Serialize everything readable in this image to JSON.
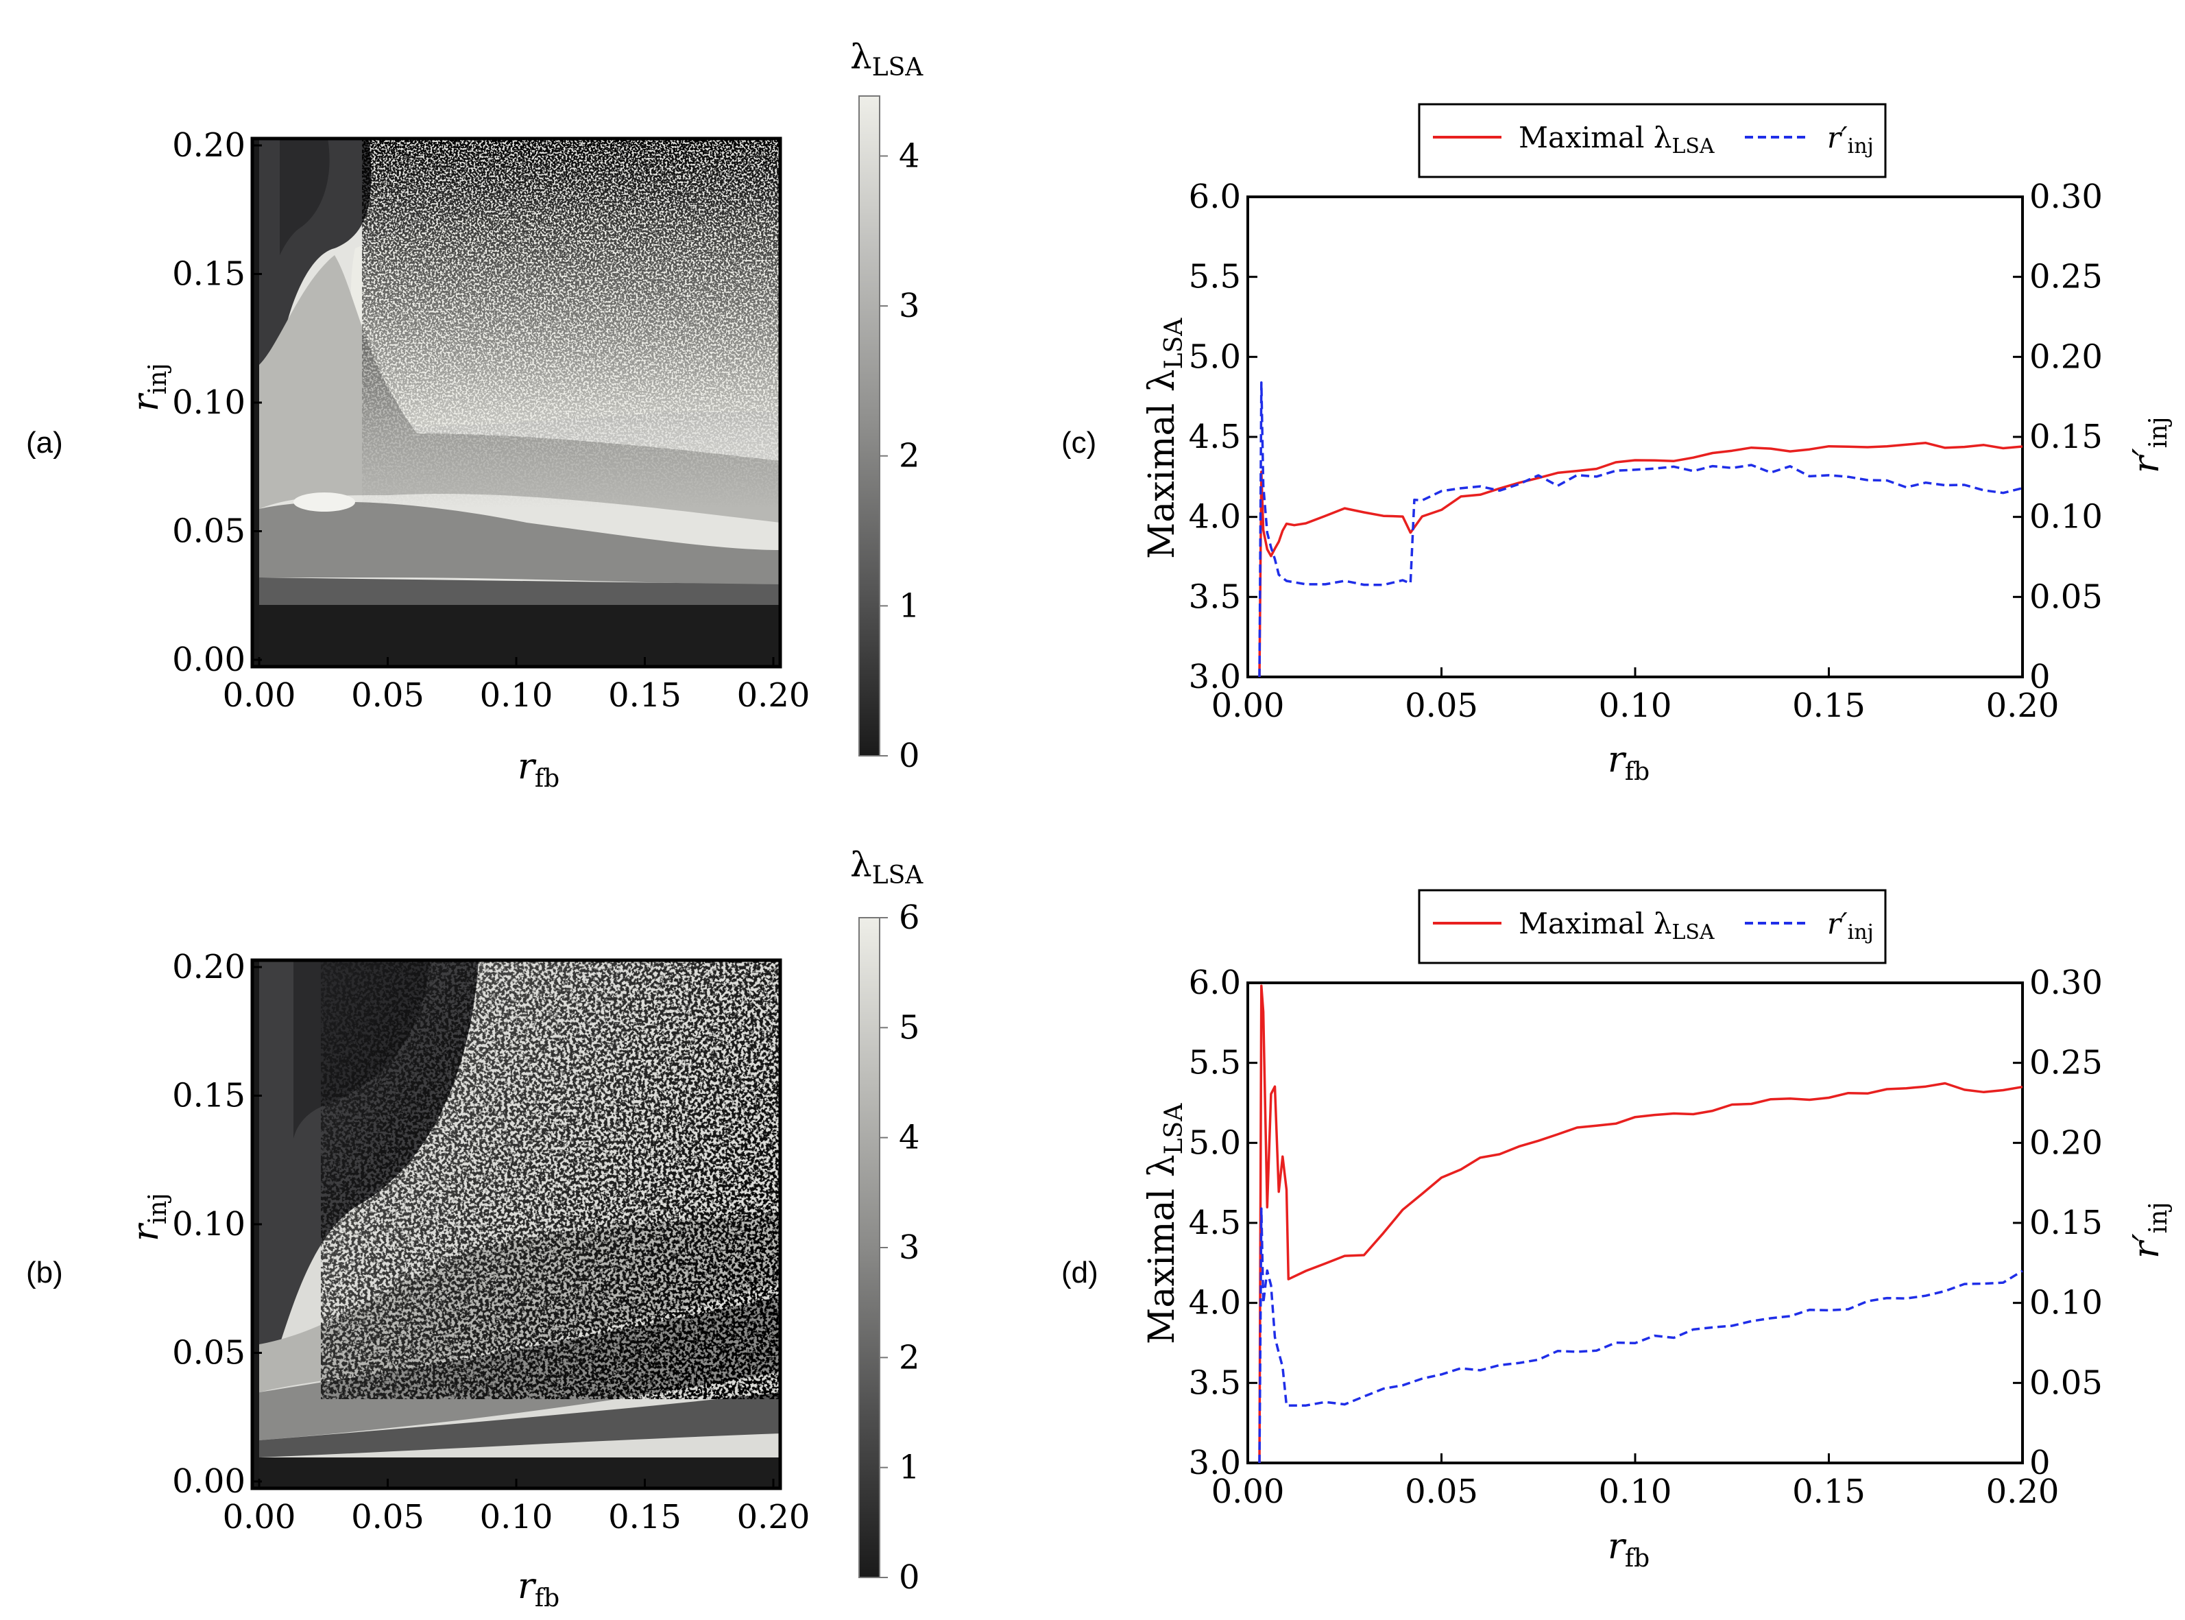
{
  "chart_data": [
    {
      "id": "a",
      "panel_label": "(a)",
      "type": "heatmap",
      "xlabel": "r",
      "xlabel_sub": "fb",
      "ylabel": "r",
      "ylabel_sub": "inj",
      "xlim": [
        0,
        0.2
      ],
      "ylim": [
        0,
        0.2
      ],
      "xticks": [
        "0.00",
        "0.05",
        "0.10",
        "0.15",
        "0.20"
      ],
      "yticks": [
        "0.00",
        "0.05",
        "0.10",
        "0.15",
        "0.20"
      ],
      "colorbar": {
        "title": "λ",
        "title_sub": "LSA",
        "range": [
          0,
          4.4
        ],
        "ticks": [
          "0",
          "1",
          "2",
          "3",
          "4"
        ],
        "tick_values": [
          0,
          1,
          2,
          3,
          4
        ]
      },
      "zmax": 4.4
    },
    {
      "id": "b",
      "panel_label": "(b)",
      "type": "heatmap",
      "xlabel": "r",
      "xlabel_sub": "fb",
      "ylabel": "r",
      "ylabel_sub": "inj",
      "xlim": [
        0,
        0.2
      ],
      "ylim": [
        0,
        0.2
      ],
      "xticks": [
        "0.00",
        "0.05",
        "0.10",
        "0.15",
        "0.20"
      ],
      "yticks": [
        "0.00",
        "0.05",
        "0.10",
        "0.15",
        "0.20"
      ],
      "colorbar": {
        "title": "λ",
        "title_sub": "LSA",
        "range": [
          0,
          6
        ],
        "ticks": [
          "0",
          "1",
          "2",
          "3",
          "4",
          "5",
          "6"
        ],
        "tick_values": [
          0,
          1,
          2,
          3,
          4,
          5,
          6
        ]
      },
      "zmax": 6
    },
    {
      "id": "c",
      "panel_label": "(c)",
      "type": "line",
      "xlabel": "r",
      "xlabel_sub": "fb",
      "ylabel": "Maximal λ",
      "ylabel_sub": "LSA",
      "y2label": "r′",
      "y2label_sub": "inj",
      "xlim": [
        0,
        0.2
      ],
      "ylim": [
        3,
        6
      ],
      "y2lim": [
        0,
        0.3
      ],
      "xticks": [
        "0.00",
        "0.05",
        "0.10",
        "0.15",
        "0.20"
      ],
      "xtick_values": [
        0,
        0.05,
        0.1,
        0.15,
        0.2
      ],
      "yticks": [
        "3.0",
        "3.5",
        "4.0",
        "4.5",
        "5.0",
        "5.5",
        "6.0"
      ],
      "ytick_values": [
        3,
        3.5,
        4,
        4.5,
        5,
        5.5,
        6
      ],
      "y2ticks": [
        "0",
        "0.05",
        "0.10",
        "0.15",
        "0.20",
        "0.25",
        "0.30"
      ],
      "y2tick_values": [
        0,
        0.05,
        0.1,
        0.15,
        0.2,
        0.25,
        0.3
      ],
      "legend": {
        "position": "top-center",
        "entries": [
          {
            "label": "Maximal λ",
            "sub": "LSA",
            "color": "#e8201f",
            "style": "solid"
          },
          {
            "label": "r′",
            "sub": "inj",
            "color": "#1f2ee8",
            "style": "dashed"
          }
        ]
      },
      "series": [
        {
          "name": "Maximal λLSA",
          "color": "#e8201f",
          "axis": "left",
          "x": [
            0.003,
            0.0035,
            0.004,
            0.005,
            0.006,
            0.007,
            0.008,
            0.009,
            0.01,
            0.012,
            0.015,
            0.02,
            0.025,
            0.03,
            0.035,
            0.04,
            0.042,
            0.045,
            0.05,
            0.055,
            0.06,
            0.065,
            0.07,
            0.075,
            0.08,
            0.085,
            0.09,
            0.095,
            0.1,
            0.105,
            0.11,
            0.115,
            0.12,
            0.125,
            0.13,
            0.135,
            0.14,
            0.145,
            0.15,
            0.155,
            0.16,
            0.165,
            0.17,
            0.175,
            0.18,
            0.185,
            0.19,
            0.195,
            0.2
          ],
          "values": [
            3.0,
            4.3,
            3.9,
            3.8,
            3.75,
            3.8,
            3.85,
            3.9,
            3.95,
            3.95,
            3.98,
            4.02,
            4.04,
            4.05,
            4.02,
            4.0,
            3.92,
            4.0,
            4.05,
            4.12,
            4.15,
            4.18,
            4.22,
            4.24,
            4.26,
            4.28,
            4.3,
            4.32,
            4.34,
            4.35,
            4.37,
            4.38,
            4.39,
            4.41,
            4.42,
            4.43,
            4.43,
            4.44,
            4.44,
            4.45,
            4.44,
            4.46,
            4.45,
            4.45,
            4.44,
            4.45,
            4.44,
            4.43,
            4.44
          ]
        },
        {
          "name": "r′inj",
          "color": "#1f2ee8",
          "axis": "right",
          "x": [
            0.003,
            0.0035,
            0.004,
            0.005,
            0.006,
            0.007,
            0.008,
            0.01,
            0.015,
            0.02,
            0.025,
            0.03,
            0.035,
            0.04,
            0.042,
            0.043,
            0.045,
            0.05,
            0.055,
            0.06,
            0.065,
            0.07,
            0.075,
            0.08,
            0.085,
            0.09,
            0.095,
            0.1,
            0.105,
            0.11,
            0.115,
            0.12,
            0.125,
            0.13,
            0.135,
            0.14,
            0.145,
            0.15,
            0.155,
            0.16,
            0.165,
            0.17,
            0.175,
            0.18,
            0.185,
            0.19,
            0.195,
            0.2
          ],
          "values": [
            0.0,
            0.185,
            0.12,
            0.09,
            0.08,
            0.075,
            0.065,
            0.06,
            0.058,
            0.058,
            0.058,
            0.058,
            0.058,
            0.06,
            0.06,
            0.11,
            0.11,
            0.115,
            0.12,
            0.12,
            0.118,
            0.122,
            0.124,
            0.12,
            0.128,
            0.124,
            0.13,
            0.128,
            0.132,
            0.13,
            0.128,
            0.132,
            0.13,
            0.132,
            0.128,
            0.13,
            0.126,
            0.128,
            0.124,
            0.122,
            0.124,
            0.12,
            0.122,
            0.118,
            0.12,
            0.118,
            0.116,
            0.118
          ]
        }
      ]
    },
    {
      "id": "d",
      "panel_label": "(d)",
      "type": "line",
      "xlabel": "r",
      "xlabel_sub": "fb",
      "ylabel": "Maximal λ",
      "ylabel_sub": "LSA",
      "y2label": "r′",
      "y2label_sub": "inj",
      "xlim": [
        0,
        0.2
      ],
      "ylim": [
        3,
        6
      ],
      "y2lim": [
        0,
        0.3
      ],
      "xticks": [
        "0.00",
        "0.05",
        "0.10",
        "0.15",
        "0.20"
      ],
      "xtick_values": [
        0,
        0.05,
        0.1,
        0.15,
        0.2
      ],
      "yticks": [
        "3.0",
        "3.5",
        "4.0",
        "4.5",
        "5.0",
        "5.5",
        "6.0"
      ],
      "ytick_values": [
        3,
        3.5,
        4,
        4.5,
        5,
        5.5,
        6
      ],
      "y2ticks": [
        "0",
        "0.05",
        "0.10",
        "0.15",
        "0.20",
        "0.25",
        "0.30"
      ],
      "y2tick_values": [
        0,
        0.05,
        0.1,
        0.15,
        0.2,
        0.25,
        0.3
      ],
      "legend": {
        "position": "top-center",
        "entries": [
          {
            "label": "Maximal λ",
            "sub": "LSA",
            "color": "#e8201f",
            "style": "solid"
          },
          {
            "label": "r′",
            "sub": "inj",
            "color": "#1f2ee8",
            "style": "dashed"
          }
        ]
      },
      "series": [
        {
          "name": "Maximal λLSA",
          "color": "#e8201f",
          "axis": "left",
          "x": [
            0.003,
            0.0035,
            0.004,
            0.005,
            0.006,
            0.007,
            0.008,
            0.009,
            0.01,
            0.0105,
            0.015,
            0.02,
            0.025,
            0.03,
            0.035,
            0.04,
            0.045,
            0.05,
            0.055,
            0.06,
            0.065,
            0.07,
            0.075,
            0.08,
            0.085,
            0.09,
            0.095,
            0.1,
            0.105,
            0.11,
            0.115,
            0.12,
            0.125,
            0.13,
            0.135,
            0.14,
            0.145,
            0.15,
            0.155,
            0.16,
            0.165,
            0.17,
            0.175,
            0.18,
            0.185,
            0.19,
            0.195,
            0.2
          ],
          "values": [
            3.0,
            6.0,
            5.8,
            4.6,
            5.3,
            5.35,
            4.7,
            4.9,
            4.7,
            4.15,
            4.22,
            4.26,
            4.28,
            4.32,
            4.45,
            4.58,
            4.7,
            4.78,
            4.84,
            4.9,
            4.94,
            4.98,
            5.02,
            5.05,
            5.08,
            5.1,
            5.12,
            5.14,
            5.16,
            5.18,
            5.2,
            5.21,
            5.23,
            5.24,
            5.26,
            5.28,
            5.29,
            5.3,
            5.31,
            5.32,
            5.34,
            5.36,
            5.35,
            5.36,
            5.34,
            5.33,
            5.32,
            5.35
          ]
        },
        {
          "name": "r′inj",
          "color": "#1f2ee8",
          "axis": "right",
          "x": [
            0.003,
            0.0035,
            0.004,
            0.005,
            0.006,
            0.007,
            0.008,
            0.009,
            0.01,
            0.015,
            0.02,
            0.025,
            0.03,
            0.035,
            0.04,
            0.045,
            0.05,
            0.055,
            0.06,
            0.065,
            0.07,
            0.075,
            0.08,
            0.085,
            0.09,
            0.095,
            0.1,
            0.105,
            0.11,
            0.115,
            0.12,
            0.125,
            0.13,
            0.135,
            0.14,
            0.145,
            0.15,
            0.155,
            0.16,
            0.165,
            0.17,
            0.175,
            0.18,
            0.185,
            0.19,
            0.195,
            0.2
          ],
          "values": [
            0.0,
            0.16,
            0.1,
            0.12,
            0.11,
            0.08,
            0.07,
            0.06,
            0.036,
            0.036,
            0.036,
            0.037,
            0.042,
            0.046,
            0.05,
            0.052,
            0.055,
            0.058,
            0.06,
            0.062,
            0.064,
            0.066,
            0.068,
            0.07,
            0.072,
            0.074,
            0.076,
            0.078,
            0.08,
            0.082,
            0.084,
            0.086,
            0.088,
            0.09,
            0.092,
            0.094,
            0.096,
            0.098,
            0.1,
            0.102,
            0.104,
            0.106,
            0.108,
            0.11,
            0.112,
            0.114,
            0.12
          ]
        }
      ]
    }
  ]
}
